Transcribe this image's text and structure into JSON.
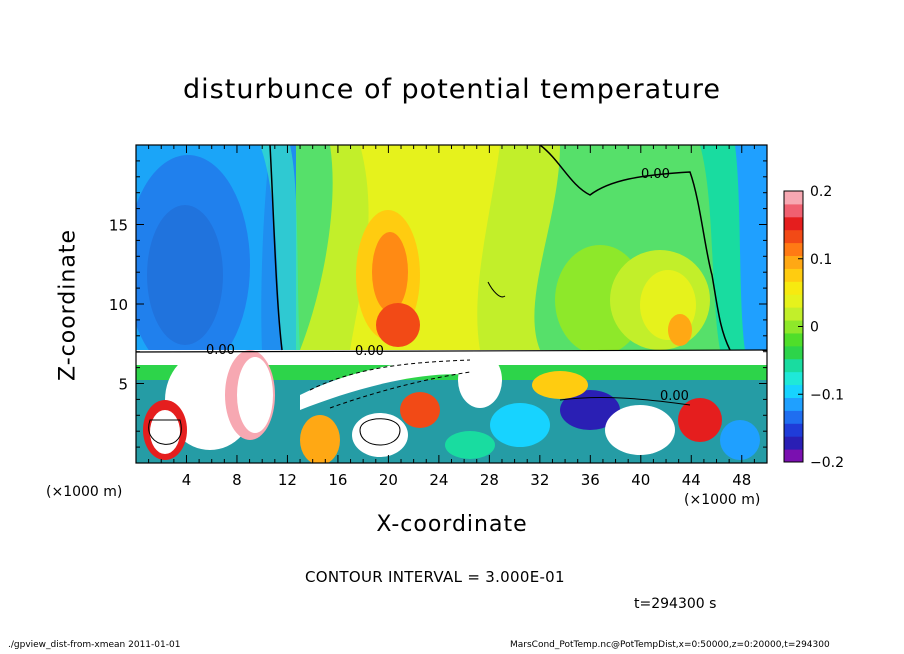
{
  "chart_data": {
    "type": "heatmap",
    "title": "disturbunce of potential temperature",
    "xlabel": "X-coordinate",
    "ylabel": "Z-coordinate",
    "x_unit_label": "(×1000 m)",
    "x_unit_label_right": "(×1000 m)",
    "xlim": [
      0,
      50
    ],
    "ylim": [
      0,
      20
    ],
    "x_ticks": [
      "4",
      "8",
      "12",
      "16",
      "20",
      "24",
      "28",
      "32",
      "36",
      "40",
      "44",
      "48"
    ],
    "y_ticks": [
      "5",
      "10",
      "15"
    ],
    "colorbar_ticks": [
      "0.2",
      "0.1",
      "0",
      "−0.1",
      "−0.2"
    ],
    "colorbar_range": [
      -0.2,
      0.2
    ],
    "contour_labels": [
      "0.00",
      "0.00",
      "0.00",
      "0.00"
    ],
    "colorbar_colors": [
      "#7a10b0",
      "#2a1fb4",
      "#1f3cd8",
      "#1f6ef0",
      "#1fa0ff",
      "#17d3ff",
      "#1fe8d8",
      "#19dca0",
      "#2dd44a",
      "#4fde2a",
      "#8ee82a",
      "#c2ef2a",
      "#e6f21c",
      "#f7ea10",
      "#ffcc10",
      "#ffa814",
      "#ff7a14",
      "#f24a16",
      "#e51e1e",
      "#f06070",
      "#f7a8b2"
    ]
  },
  "annotations": {
    "contour_interval": "CONTOUR INTERVAL = 3.000E-01",
    "time": "t=294300 s",
    "footer_left": "./gpview_dist-from-xmean   2011-01-01",
    "footer_right": "MarsCond_PotTemp.nc@PotTempDist,x=0:50000,z=0:20000,t=294300"
  }
}
